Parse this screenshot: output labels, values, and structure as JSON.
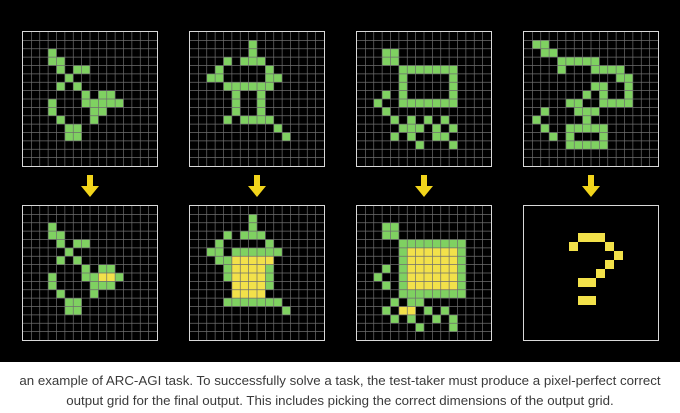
{
  "colors": {
    "background": "#000000",
    "grid_line": "#6e6e6e",
    "green": "#7fd161",
    "yellow": "#f2e14a",
    "arrow": "#f2d51b",
    "caption_text": "#3a3a3a"
  },
  "grid_size": 16,
  "arrow_icon": "arrow-down-icon",
  "caption": {
    "line1": "an example of ARC-AGI task. To successfully solve a task, the test-taker must produce a pixel-perfect correct",
    "line2": "output grid for the final output. This includes picking the correct dimensions of the output grid."
  },
  "examples": [
    {
      "input": {
        "green": [
          [
            3,
            2
          ],
          [
            3,
            3
          ],
          [
            4,
            3
          ],
          [
            4,
            4
          ],
          [
            6,
            4
          ],
          [
            7,
            4
          ],
          [
            5,
            5
          ],
          [
            6,
            6
          ],
          [
            7,
            7
          ],
          [
            7,
            8
          ],
          [
            8,
            8
          ],
          [
            8,
            9
          ],
          [
            3,
            8
          ],
          [
            3,
            9
          ],
          [
            4,
            10
          ],
          [
            5,
            11
          ],
          [
            6,
            11
          ],
          [
            5,
            12
          ],
          [
            6,
            12
          ],
          [
            8,
            10
          ],
          [
            9,
            9
          ],
          [
            9,
            8
          ],
          [
            9,
            7
          ],
          [
            10,
            7
          ],
          [
            10,
            8
          ],
          [
            11,
            8
          ],
          [
            4,
            6
          ]
        ],
        "yellow": []
      },
      "output": {
        "green": [
          [
            3,
            2
          ],
          [
            3,
            3
          ],
          [
            4,
            3
          ],
          [
            4,
            4
          ],
          [
            6,
            4
          ],
          [
            7,
            4
          ],
          [
            5,
            5
          ],
          [
            6,
            6
          ],
          [
            7,
            7
          ],
          [
            7,
            8
          ],
          [
            8,
            8
          ],
          [
            3,
            8
          ],
          [
            3,
            9
          ],
          [
            4,
            10
          ],
          [
            5,
            11
          ],
          [
            6,
            11
          ],
          [
            5,
            12
          ],
          [
            6,
            12
          ],
          [
            8,
            10
          ],
          [
            9,
            9
          ],
          [
            9,
            7
          ],
          [
            10,
            7
          ],
          [
            11,
            8
          ],
          [
            4,
            6
          ],
          [
            8,
            9
          ],
          [
            10,
            9
          ]
        ],
        "yellow": [
          [
            9,
            8
          ],
          [
            10,
            8
          ]
        ]
      }
    },
    {
      "input": {
        "green": [
          [
            7,
            1
          ],
          [
            7,
            2
          ],
          [
            4,
            3
          ],
          [
            6,
            3
          ],
          [
            7,
            3
          ],
          [
            8,
            3
          ],
          [
            3,
            4
          ],
          [
            9,
            4
          ],
          [
            2,
            5
          ],
          [
            3,
            5
          ],
          [
            9,
            5
          ],
          [
            10,
            5
          ],
          [
            4,
            6
          ],
          [
            9,
            6
          ],
          [
            5,
            6
          ],
          [
            6,
            6
          ],
          [
            7,
            6
          ],
          [
            8,
            6
          ],
          [
            5,
            7
          ],
          [
            5,
            8
          ],
          [
            5,
            9
          ],
          [
            8,
            8
          ],
          [
            8,
            9
          ],
          [
            8,
            7
          ],
          [
            6,
            10
          ],
          [
            7,
            10
          ],
          [
            8,
            10
          ],
          [
            9,
            10
          ],
          [
            10,
            11
          ],
          [
            11,
            12
          ],
          [
            4,
            10
          ]
        ],
        "yellow": []
      },
      "output": {
        "green": [
          [
            7,
            1
          ],
          [
            7,
            2
          ],
          [
            4,
            3
          ],
          [
            6,
            3
          ],
          [
            7,
            3
          ],
          [
            8,
            3
          ],
          [
            3,
            4
          ],
          [
            9,
            4
          ],
          [
            2,
            5
          ],
          [
            3,
            5
          ],
          [
            9,
            5
          ],
          [
            10,
            5
          ],
          [
            4,
            6
          ],
          [
            5,
            5
          ],
          [
            6,
            5
          ],
          [
            7,
            5
          ],
          [
            8,
            5
          ],
          [
            10,
            11
          ],
          [
            11,
            12
          ],
          [
            4,
            11
          ],
          [
            5,
            11
          ],
          [
            6,
            11
          ],
          [
            7,
            11
          ],
          [
            8,
            11
          ],
          [
            9,
            11
          ],
          [
            4,
            7
          ],
          [
            4,
            8
          ],
          [
            9,
            8
          ],
          [
            9,
            9
          ],
          [
            9,
            7
          ],
          [
            3,
            6
          ]
        ],
        "yellow": [
          [
            5,
            6
          ],
          [
            6,
            6
          ],
          [
            7,
            6
          ],
          [
            8,
            6
          ],
          [
            9,
            6
          ],
          [
            5,
            7
          ],
          [
            6,
            7
          ],
          [
            7,
            7
          ],
          [
            8,
            7
          ],
          [
            5,
            8
          ],
          [
            6,
            8
          ],
          [
            7,
            8
          ],
          [
            8,
            8
          ],
          [
            5,
            9
          ],
          [
            6,
            9
          ],
          [
            7,
            9
          ],
          [
            8,
            9
          ],
          [
            5,
            10
          ],
          [
            6,
            10
          ],
          [
            7,
            10
          ],
          [
            8,
            10
          ]
        ]
      }
    },
    {
      "input": {
        "green": [
          [
            3,
            2
          ],
          [
            4,
            2
          ],
          [
            3,
            3
          ],
          [
            4,
            3
          ],
          [
            5,
            4
          ],
          [
            6,
            4
          ],
          [
            7,
            4
          ],
          [
            8,
            4
          ],
          [
            9,
            4
          ],
          [
            10,
            4
          ],
          [
            11,
            4
          ],
          [
            11,
            5
          ],
          [
            11,
            6
          ],
          [
            11,
            7
          ],
          [
            5,
            5
          ],
          [
            5,
            6
          ],
          [
            5,
            7
          ],
          [
            5,
            8
          ],
          [
            6,
            8
          ],
          [
            7,
            8
          ],
          [
            8,
            8
          ],
          [
            9,
            8
          ],
          [
            10,
            8
          ],
          [
            11,
            8
          ],
          [
            3,
            7
          ],
          [
            2,
            8
          ],
          [
            3,
            9
          ],
          [
            4,
            10
          ],
          [
            6,
            10
          ],
          [
            5,
            11
          ],
          [
            6,
            11
          ],
          [
            7,
            11
          ],
          [
            8,
            10
          ],
          [
            9,
            11
          ],
          [
            10,
            10
          ],
          [
            11,
            11
          ],
          [
            9,
            12
          ],
          [
            10,
            12
          ],
          [
            6,
            12
          ],
          [
            7,
            13
          ],
          [
            11,
            13
          ],
          [
            4,
            12
          ]
        ],
        "yellow": []
      },
      "output": {
        "green": [
          [
            3,
            2
          ],
          [
            4,
            2
          ],
          [
            3,
            3
          ],
          [
            4,
            3
          ],
          [
            5,
            4
          ],
          [
            6,
            4
          ],
          [
            7,
            4
          ],
          [
            8,
            4
          ],
          [
            9,
            4
          ],
          [
            10,
            4
          ],
          [
            11,
            4
          ],
          [
            12,
            4
          ],
          [
            5,
            5
          ],
          [
            12,
            5
          ],
          [
            12,
            6
          ],
          [
            12,
            7
          ],
          [
            12,
            8
          ],
          [
            12,
            9
          ],
          [
            5,
            6
          ],
          [
            5,
            7
          ],
          [
            5,
            8
          ],
          [
            5,
            9
          ],
          [
            5,
            10
          ],
          [
            6,
            10
          ],
          [
            7,
            10
          ],
          [
            8,
            10
          ],
          [
            9,
            10
          ],
          [
            10,
            10
          ],
          [
            11,
            10
          ],
          [
            12,
            10
          ],
          [
            3,
            7
          ],
          [
            2,
            8
          ],
          [
            3,
            9
          ],
          [
            4,
            11
          ],
          [
            3,
            12
          ],
          [
            6,
            11
          ],
          [
            7,
            11
          ],
          [
            8,
            12
          ],
          [
            10,
            12
          ],
          [
            11,
            13
          ],
          [
            9,
            13
          ],
          [
            6,
            13
          ],
          [
            7,
            14
          ],
          [
            11,
            14
          ],
          [
            4,
            13
          ]
        ],
        "yellow": [
          [
            6,
            5
          ],
          [
            7,
            5
          ],
          [
            8,
            5
          ],
          [
            9,
            5
          ],
          [
            10,
            5
          ],
          [
            11,
            5
          ],
          [
            6,
            6
          ],
          [
            7,
            6
          ],
          [
            8,
            6
          ],
          [
            9,
            6
          ],
          [
            10,
            6
          ],
          [
            11,
            6
          ],
          [
            6,
            7
          ],
          [
            7,
            7
          ],
          [
            8,
            7
          ],
          [
            9,
            7
          ],
          [
            10,
            7
          ],
          [
            11,
            7
          ],
          [
            6,
            8
          ],
          [
            7,
            8
          ],
          [
            8,
            8
          ],
          [
            9,
            8
          ],
          [
            10,
            8
          ],
          [
            11,
            8
          ],
          [
            6,
            9
          ],
          [
            7,
            9
          ],
          [
            8,
            9
          ],
          [
            9,
            9
          ],
          [
            10,
            9
          ],
          [
            11,
            9
          ],
          [
            6,
            12
          ],
          [
            5,
            12
          ]
        ]
      }
    },
    {
      "input": {
        "green": [
          [
            1,
            1
          ],
          [
            2,
            1
          ],
          [
            2,
            2
          ],
          [
            3,
            2
          ],
          [
            4,
            3
          ],
          [
            5,
            3
          ],
          [
            6,
            3
          ],
          [
            7,
            3
          ],
          [
            8,
            3
          ],
          [
            4,
            4
          ],
          [
            8,
            4
          ],
          [
            9,
            4
          ],
          [
            10,
            4
          ],
          [
            11,
            4
          ],
          [
            11,
            5
          ],
          [
            12,
            5
          ],
          [
            12,
            6
          ],
          [
            12,
            7
          ],
          [
            12,
            8
          ],
          [
            11,
            8
          ],
          [
            10,
            8
          ],
          [
            9,
            8
          ],
          [
            9,
            6
          ],
          [
            9,
            7
          ],
          [
            8,
            6
          ],
          [
            7,
            7
          ],
          [
            6,
            8
          ],
          [
            6,
            9
          ],
          [
            7,
            9
          ],
          [
            8,
            9
          ],
          [
            5,
            8
          ],
          [
            7,
            10
          ],
          [
            5,
            11
          ],
          [
            6,
            11
          ],
          [
            7,
            11
          ],
          [
            8,
            11
          ],
          [
            9,
            11
          ],
          [
            9,
            12
          ],
          [
            9,
            13
          ],
          [
            5,
            12
          ],
          [
            5,
            13
          ],
          [
            6,
            13
          ],
          [
            7,
            13
          ],
          [
            8,
            13
          ],
          [
            1,
            10
          ],
          [
            2,
            11
          ],
          [
            3,
            12
          ],
          [
            2,
            9
          ]
        ],
        "yellow": []
      },
      "output": {
        "green": [],
        "yellow": []
      },
      "unknown_glyph": "?"
    }
  ]
}
